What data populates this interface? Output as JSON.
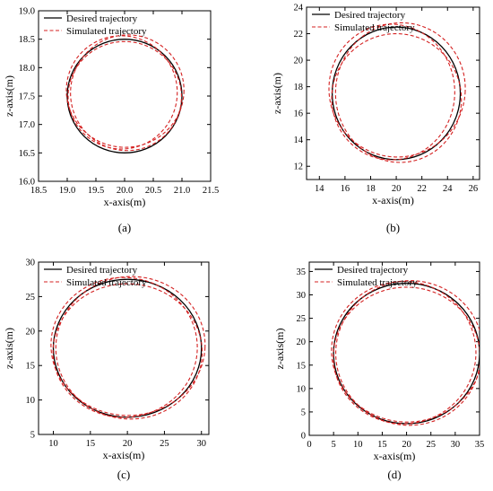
{
  "figure": {
    "legend": {
      "desired": "Desired trajectory",
      "simulated": "Simulated trajectory"
    },
    "colors": {
      "desired": "#000000",
      "simulated": "#d42020"
    }
  },
  "chart_data": [
    {
      "type": "line",
      "panel_label": "(a)",
      "xlabel": "x-axis(m)",
      "ylabel": "z-axis(m)",
      "xlim": [
        18.5,
        21.5
      ],
      "ylim": [
        16.0,
        19.0
      ],
      "xticks": [
        "18.5",
        "19.0",
        "19.5",
        "20.0",
        "20.5",
        "21.0",
        "21.5"
      ],
      "yticks": [
        "16.0",
        "16.5",
        "17.0",
        "17.5",
        "18.0",
        "18.5",
        "19.0"
      ],
      "legend_position": "top-left",
      "series": [
        {
          "name": "Desired trajectory",
          "style": "solid",
          "shape": "circle",
          "center": [
            20.0,
            17.5
          ],
          "radius": 1.0
        },
        {
          "name": "Simulated trajectory",
          "style": "dashed",
          "shape": "circle",
          "center": [
            20.0,
            17.55
          ],
          "radius": 0.98,
          "wobble": 0.05,
          "loops": 3
        }
      ]
    },
    {
      "type": "line",
      "panel_label": "(b)",
      "xlabel": "x-axis(m)",
      "ylabel": "z-axis(m)",
      "xlim": [
        13,
        26.5
      ],
      "ylim": [
        11,
        24
      ],
      "xticks": [
        "14",
        "16",
        "18",
        "20",
        "22",
        "24",
        "26"
      ],
      "yticks": [
        "12",
        "14",
        "16",
        "18",
        "20",
        "22",
        "24"
      ],
      "legend_position": "top-center",
      "series": [
        {
          "name": "Desired trajectory",
          "style": "solid",
          "shape": "circle",
          "center": [
            20.0,
            17.5
          ],
          "radius": 5.0
        },
        {
          "name": "Simulated trajectory",
          "style": "dashed",
          "shape": "circle",
          "center": [
            20.0,
            17.5
          ],
          "radius": 5.0,
          "wobble": 0.35,
          "loops": 3
        }
      ]
    },
    {
      "type": "line",
      "panel_label": "(c)",
      "xlabel": "x-axis(m)",
      "ylabel": "z-axis(m)",
      "xlim": [
        8,
        31
      ],
      "ylim": [
        5,
        30
      ],
      "xticks": [
        "10",
        "15",
        "20",
        "25",
        "30"
      ],
      "yticks": [
        "5",
        "10",
        "15",
        "20",
        "25",
        "30"
      ],
      "legend_position": "top-left",
      "series": [
        {
          "name": "Desired trajectory",
          "style": "solid",
          "shape": "circle",
          "center": [
            20.0,
            17.5
          ],
          "radius": 10.0
        },
        {
          "name": "Simulated trajectory",
          "style": "dashed",
          "shape": "circle",
          "center": [
            20.0,
            17.5
          ],
          "radius": 10.0,
          "wobble": 0.45,
          "loops": 3
        }
      ]
    },
    {
      "type": "line",
      "panel_label": "(d)",
      "xlabel": "x-axis(m)",
      "ylabel": "z-axis(m)",
      "xlim": [
        0,
        35
      ],
      "ylim": [
        0,
        37
      ],
      "xticks": [
        "0",
        "5",
        "10",
        "15",
        "20",
        "25",
        "30",
        "35"
      ],
      "yticks": [
        "0",
        "5",
        "10",
        "15",
        "20",
        "25",
        "30",
        "35"
      ],
      "legend_position": "top-left",
      "series": [
        {
          "name": "Desired trajectory",
          "style": "solid",
          "shape": "circle",
          "center": [
            20.0,
            17.5
          ],
          "radius": 15.0
        },
        {
          "name": "Simulated trajectory",
          "style": "dashed",
          "shape": "circle",
          "center": [
            20.0,
            17.5
          ],
          "radius": 15.0,
          "wobble": 0.6,
          "loops": 3
        }
      ]
    }
  ]
}
